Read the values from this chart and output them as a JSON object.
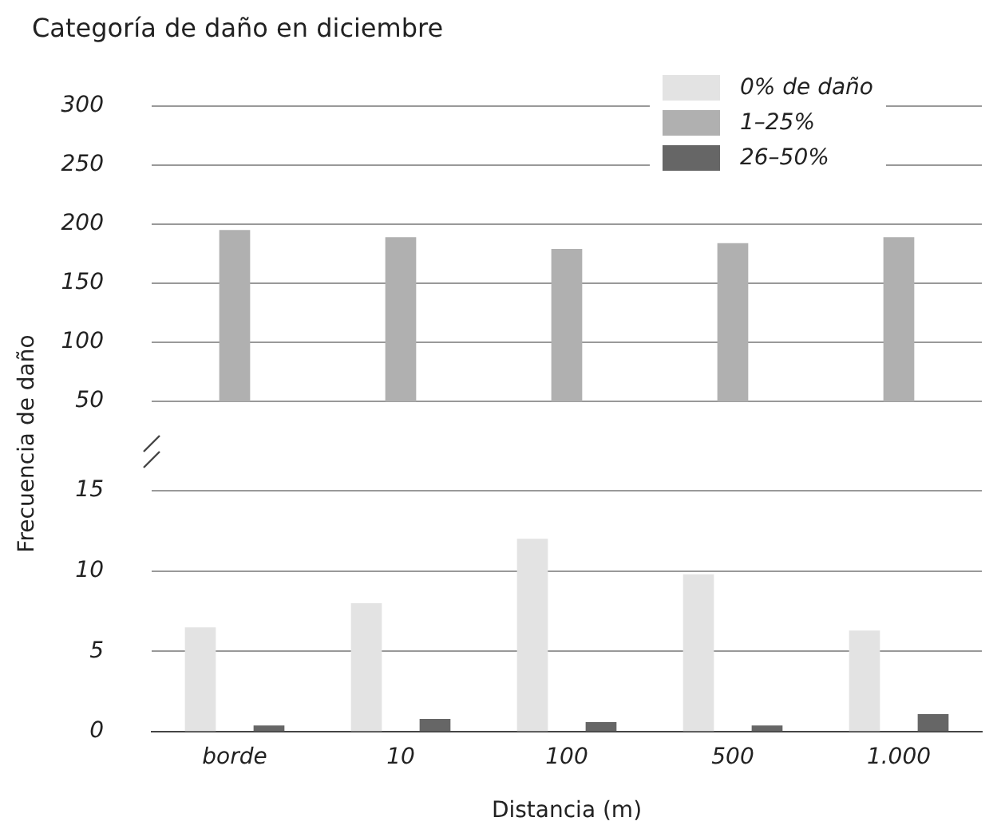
{
  "chart_data": [
    {
      "type": "bar",
      "title": "Categoría de daño en diciembre",
      "categories": [
        null,
        null,
        null,
        null,
        null
      ],
      "series": [
        {
          "name": "0% de daño",
          "color": "#e3e3e3",
          "values": [
            null,
            null,
            null,
            null,
            null
          ]
        },
        {
          "name": "1–25%",
          "color": "#b0b0b0",
          "values": [
            195,
            189,
            179,
            184,
            189
          ]
        },
        {
          "name": "26–50%",
          "color": "#666666",
          "values": [
            null,
            null,
            null,
            null,
            null
          ]
        }
      ],
      "ylim": [
        50,
        300
      ],
      "yticks": [
        50,
        100,
        150,
        200,
        250,
        300
      ],
      "grid": "y",
      "legend": "top right",
      "tick_labels": "y"
    },
    {
      "type": "bar",
      "xlabel": "Distancia (m)",
      "ylabel": "Frecuencia de daño",
      "categories": [
        "borde",
        "10",
        "100",
        "500",
        "1.000"
      ],
      "series": [
        {
          "color": "#e3e3e3",
          "values": [
            6.5,
            8,
            12,
            9.8,
            6.3
          ]
        },
        {
          "color": "#b0b0b0",
          "values": [
            null,
            null,
            null,
            null,
            null
          ]
        },
        {
          "color": "#666666",
          "values": [
            0.4,
            0.8,
            0.6,
            0.4,
            1.1
          ]
        }
      ],
      "ylim": [
        0,
        15
      ],
      "yticks": [
        0,
        5,
        10,
        15
      ],
      "grid": "y"
    }
  ]
}
